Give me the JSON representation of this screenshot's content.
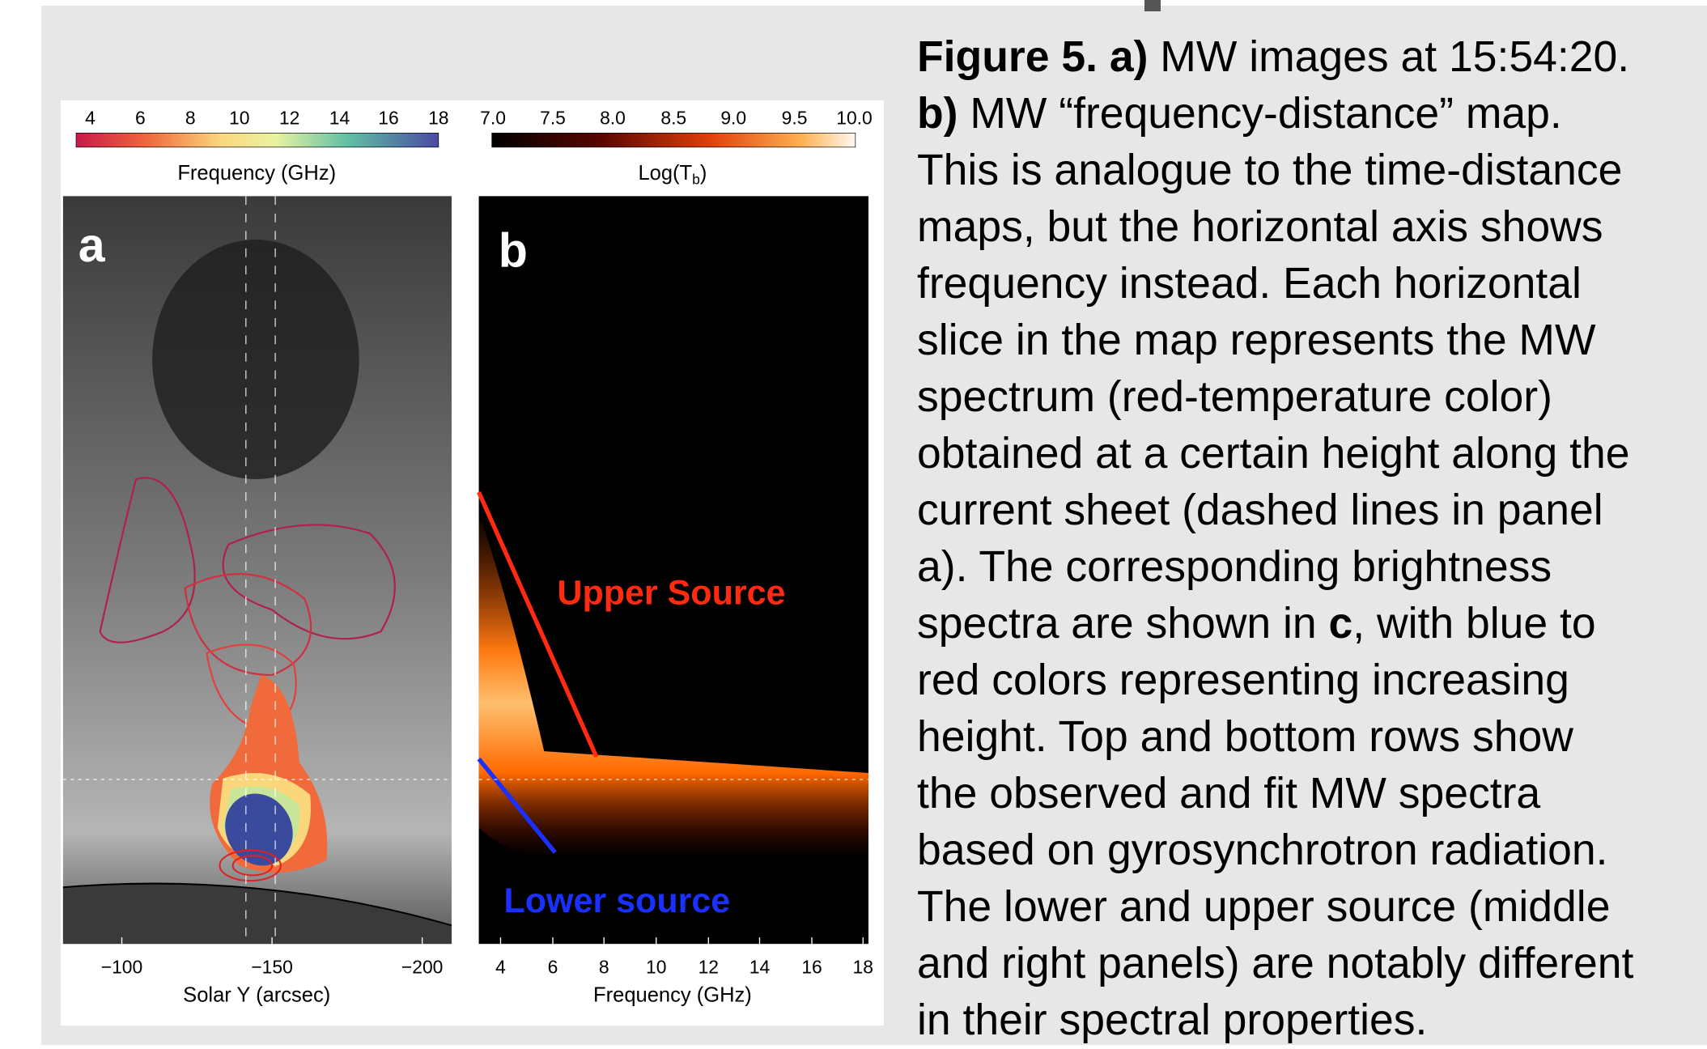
{
  "figure": {
    "colorbar_frequency": {
      "ticks": [
        "4",
        "6",
        "8",
        "10",
        "12",
        "14",
        "16",
        "18"
      ],
      "label": "Frequency (GHz)"
    },
    "colorbar_tb": {
      "ticks": [
        "7.0",
        "7.5",
        "8.0",
        "8.5",
        "9.0",
        "9.5",
        "10.0"
      ],
      "label": {
        "main": "Log(T",
        "sub": "b",
        "close": ")"
      }
    },
    "panel_a": {
      "letter": "a",
      "xticks": [
        "−100",
        "−150",
        "−200"
      ],
      "xlabel": "Solar Y (arcsec)"
    },
    "panel_b": {
      "letter": "b",
      "xticks": [
        "4",
        "6",
        "8",
        "10",
        "12",
        "14",
        "16",
        "18"
      ],
      "xlabel": "Frequency (GHz)",
      "annotations": [
        "Upper Source",
        "Lower source"
      ]
    }
  },
  "caption": {
    "lines": [
      [
        {
          "text": "Figure 5. a)",
          "bold": true
        },
        {
          "text": " MW images at 15:54:20."
        }
      ],
      [
        {
          "text": "b)",
          "bold": true
        },
        {
          "text": " MW “frequency-distance” map."
        }
      ],
      [
        {
          "text": "This is analogue to the time-distance"
        }
      ],
      [
        {
          "text": "maps, but the horizontal axis shows"
        }
      ],
      [
        {
          "text": "frequency instead. Each horizontal"
        }
      ],
      [
        {
          "text": "slice in the map represents the MW"
        }
      ],
      [
        {
          "text": "spectrum (red-temperature color)"
        }
      ],
      [
        {
          "text": "obtained at a certain height along the"
        }
      ],
      [
        {
          "text": "current sheet (dashed lines in panel"
        }
      ],
      [
        {
          "text": "a). The corresponding brightness"
        }
      ],
      [
        {
          "text": "spectra are shown in "
        },
        {
          "text": "c",
          "bold": true
        },
        {
          "text": ", with blue to"
        }
      ],
      [
        {
          "text": "red colors representing increasing"
        }
      ],
      [
        {
          "text": "height. Top and bottom rows show"
        }
      ],
      [
        {
          "text": "the observed and fit MW spectra"
        }
      ],
      [
        {
          "text": "based on gyrosynchrotron radiation."
        }
      ],
      [
        {
          "text": "The lower and upper source (middle"
        }
      ],
      [
        {
          "text": "and right panels) are notably different"
        }
      ],
      [
        {
          "text": "in their spectral properties."
        }
      ]
    ]
  }
}
